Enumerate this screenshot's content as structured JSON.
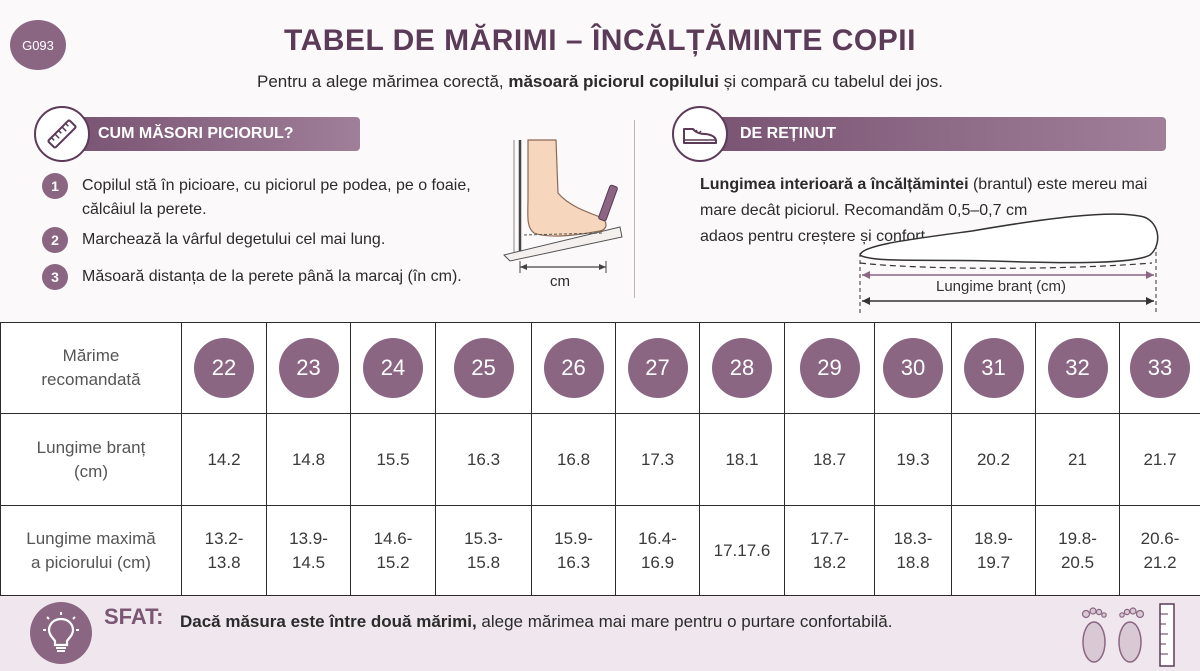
{
  "badge": "G093",
  "title": "TABEL DE MĂRIMI – ÎNCĂLȚĂMINTE COPII",
  "subtitle": {
    "pre": "Pentru a alege mărimea corectă, ",
    "bold": "măsoară piciorul copilului",
    "post": " și compară cu tabelul dei jos."
  },
  "how_to": {
    "heading": "CUM MĂSORI PICIORUL?",
    "icon": "ruler-icon",
    "steps": [
      {
        "num": "1",
        "line1": "Copilul stă în picioare, cu piciorul pe podea, pe o foaie,",
        "line2": "călcâiul la perete."
      },
      {
        "num": "2",
        "line1": "Marchează la vârful degetului cel mai lung.",
        "line2": ""
      },
      {
        "num": "3",
        "line1": "Măsoară distanța de la perete până la marcaj (în cm).",
        "line2": ""
      }
    ],
    "illustration_label": "cm"
  },
  "reminder": {
    "heading": "DE REȚINUT",
    "icon": "shoe-icon",
    "bold": "Lungimea interioară a încălțămintei",
    "line1_rest": " (brantul) este mereu mai",
    "line2": "mare decât piciorul. Recomandăm 0,5–0,7 cm",
    "line3": "adaos pentru creștere și confort.",
    "insole_label": "Lungime branț (cm)"
  },
  "table": {
    "row_labels": {
      "size": [
        "Mărime",
        "recomandată"
      ],
      "insole": [
        "Lungime branț",
        "(cm)"
      ],
      "foot": [
        "Lungime maximă",
        "a piciorului (cm)"
      ]
    },
    "sizes": [
      "22",
      "23",
      "24",
      "25",
      "26",
      "27",
      "28",
      "29",
      "30",
      "31",
      "32",
      "33"
    ],
    "insole": [
      "14.2",
      "14.8",
      "15.5",
      "16.3",
      "16.8",
      "17.3",
      "18.1",
      "18.7",
      "19.3",
      "20.2",
      "21",
      "21.7"
    ],
    "foot": [
      [
        "13.2-",
        "13.8"
      ],
      [
        "13.9-",
        "14.5"
      ],
      [
        "14.6-",
        "15.2"
      ],
      [
        "15.3-",
        "15.8"
      ],
      [
        "15.9-",
        "16.3"
      ],
      [
        "16.4-",
        "16.9"
      ],
      [
        "17.17.6",
        ""
      ],
      [
        "17.7-",
        "18.2"
      ],
      [
        "18.3-",
        "18.8"
      ],
      [
        "18.9-",
        "19.7"
      ],
      [
        "19.8-",
        "20.5"
      ],
      [
        "20.6-",
        "21.2"
      ]
    ]
  },
  "tip": {
    "label": "SFAT:",
    "bold": "Dacă măsura este între două mărimi,",
    "rest": " alege mărimea mai mare pentru o purtare confortabilă.",
    "icon": "lightbulb-icon",
    "deco_icon": "footprints-icon"
  },
  "colors": {
    "accent": "#8a6683",
    "dark": "#5b3b57",
    "tip_bg": "#efe7ed"
  }
}
